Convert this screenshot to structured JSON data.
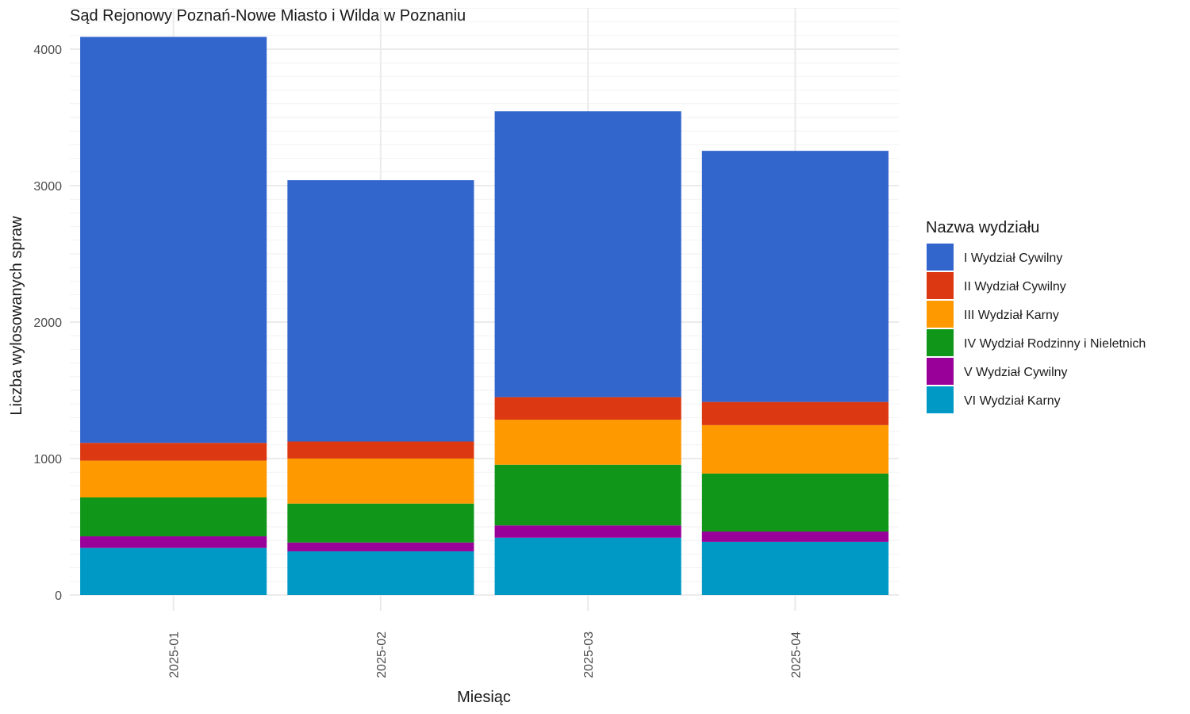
{
  "chart_data": {
    "type": "bar",
    "stacked": true,
    "title": "Sąd Rejonowy Poznań-Nowe Miasto i Wilda w Poznaniu",
    "xlabel": "Miesiąc",
    "ylabel": "Liczba wylosowanych spraw",
    "categories": [
      "2025-01",
      "2025-02",
      "2025-03",
      "2025-04"
    ],
    "ylim": [
      0,
      4100
    ],
    "yticks": [
      0,
      1000,
      2000,
      3000,
      4000
    ],
    "grid": true,
    "legend": {
      "title": "Nazwa wydziału",
      "position": "right"
    },
    "series": [
      {
        "name": "VI Wydział Karny",
        "color": "#0099C6",
        "values": [
          345,
          320,
          420,
          390
        ]
      },
      {
        "name": "V Wydział Cywilny",
        "color": "#990099",
        "values": [
          85,
          65,
          90,
          75
        ]
      },
      {
        "name": "IV Wydział Rodzinny i Nieletnich",
        "color": "#109618",
        "values": [
          285,
          285,
          445,
          425
        ]
      },
      {
        "name": "III Wydział Karny",
        "color": "#FF9900",
        "values": [
          270,
          330,
          330,
          355
        ]
      },
      {
        "name": "II Wydział Cywilny",
        "color": "#DC3912",
        "values": [
          130,
          125,
          165,
          170
        ]
      },
      {
        "name": "I Wydział Cywilny",
        "color": "#3366CC",
        "values": [
          2975,
          1915,
          2095,
          1840
        ]
      }
    ],
    "legend_order": [
      "I Wydział Cywilny",
      "II Wydział Cywilny",
      "III Wydział Karny",
      "IV Wydział Rodzinny i Nieletnich",
      "V Wydział Cywilny",
      "VI Wydział Karny"
    ]
  }
}
